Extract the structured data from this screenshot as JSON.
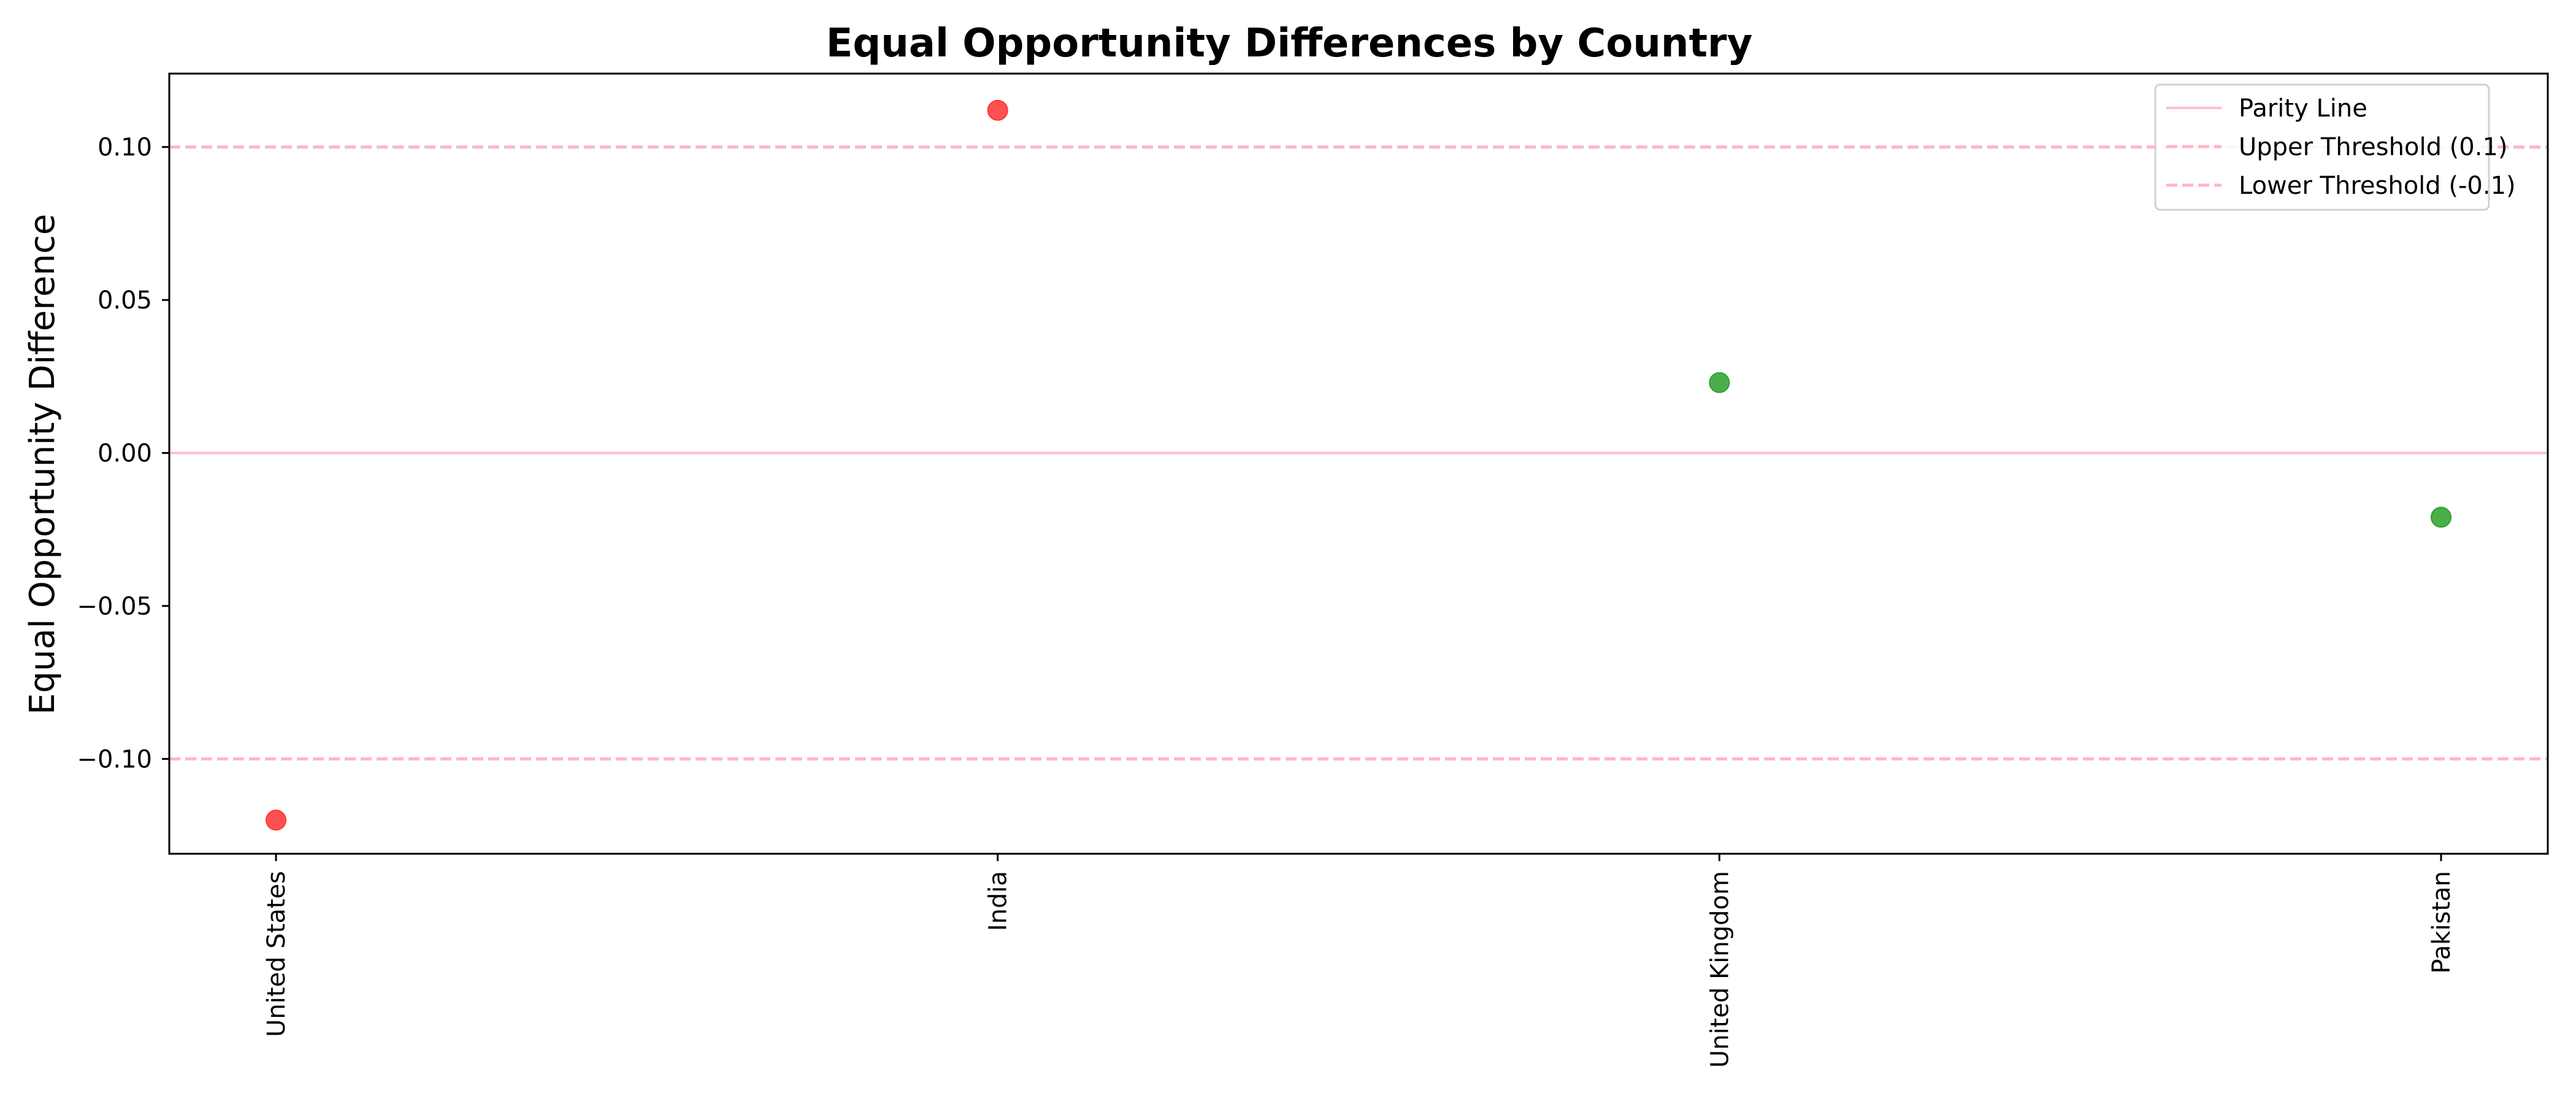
{
  "chart_data": {
    "type": "scatter",
    "title": "Equal Opportunity Differences by Country",
    "xlabel": "",
    "ylabel": "Equal Opportunity Difference",
    "categories": [
      "United States",
      "India",
      "United Kingdom",
      "Pakistan"
    ],
    "values": [
      -0.12,
      0.112,
      0.023,
      -0.021
    ],
    "point_colors": [
      "#ff3333",
      "#ff3333",
      "#2ca02c",
      "#2ca02c"
    ],
    "ylim": [
      -0.131,
      0.124
    ],
    "yticks": [
      -0.1,
      -0.05,
      0.0,
      0.05,
      0.1
    ],
    "ytick_labels": [
      "−0.10",
      "−0.05",
      "0.00",
      "0.05",
      "0.10"
    ],
    "reference_lines": [
      {
        "label": "Parity Line",
        "y": 0.0,
        "style": "solid",
        "color": "#ffc0cb"
      },
      {
        "label": "Upper Threshold (0.1)",
        "y": 0.1,
        "style": "dashed",
        "color": "#ffb6c1"
      },
      {
        "label": "Lower Threshold (-0.1)",
        "y": -0.1,
        "style": "dashed",
        "color": "#ffb6c1"
      }
    ],
    "legend_position": "top-right",
    "grid": false
  }
}
